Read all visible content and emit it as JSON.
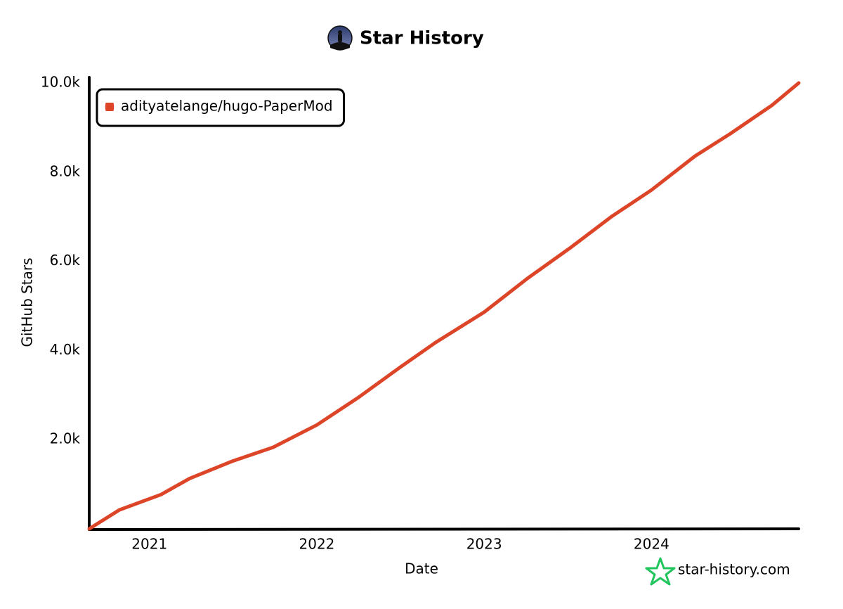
{
  "chart_data": {
    "type": "line",
    "title": "Star History",
    "xlabel": "Date",
    "ylabel": "GitHub Stars",
    "watermark": "star-history.com",
    "x": [
      2020.64,
      2020.82,
      2021.07,
      2021.24,
      2021.49,
      2021.74,
      2022.0,
      2022.25,
      2022.5,
      2022.71,
      2023.0,
      2023.26,
      2023.51,
      2023.76,
      2024.0,
      2024.26,
      2024.47,
      2024.72,
      2024.88
    ],
    "series": [
      {
        "name": "adityatelange/hugo-PaperMod",
        "color": "#dd4528",
        "values": [
          0,
          425,
          770,
          1130,
          1510,
          1830,
          2330,
          2950,
          3630,
          4180,
          4860,
          5620,
          6290,
          7000,
          7600,
          8360,
          8860,
          9500,
          10000
        ]
      }
    ],
    "xlim": [
      2020.64,
      2024.88
    ],
    "xticks": [
      2021,
      2022,
      2023,
      2024
    ],
    "ylim": [
      0,
      10000
    ],
    "yticks": [
      {
        "value": 2000,
        "label": "2.0k"
      },
      {
        "value": 4000,
        "label": "4.0k"
      },
      {
        "value": 6000,
        "label": "6.0k"
      },
      {
        "value": 8000,
        "label": "8.0k"
      },
      {
        "value": 10000,
        "label": "10.0k"
      }
    ],
    "legend": "upper left",
    "grid": false
  }
}
